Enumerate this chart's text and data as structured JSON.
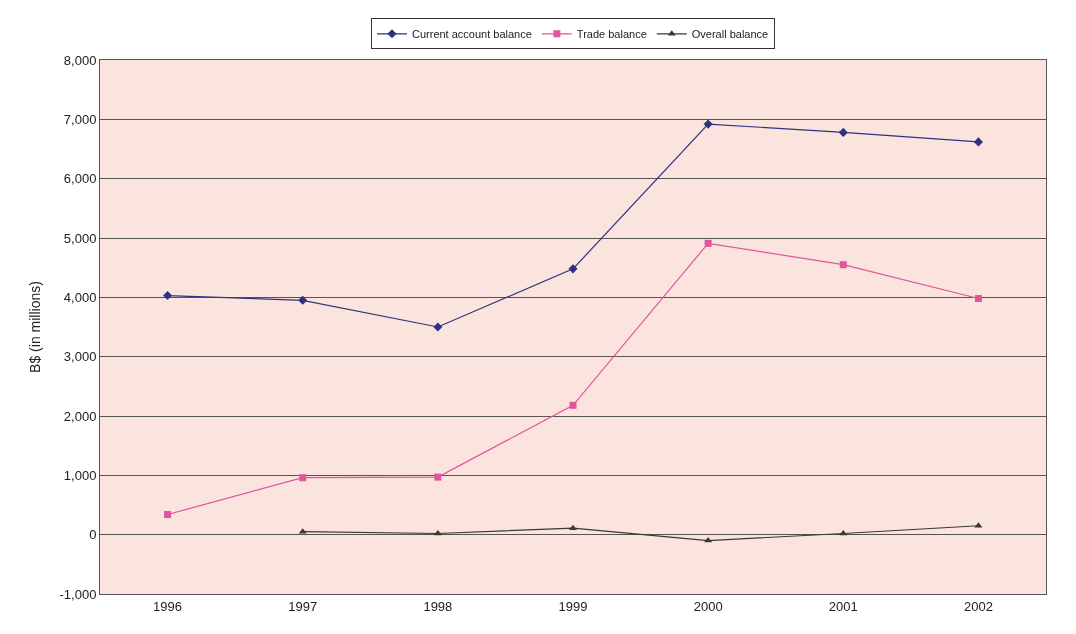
{
  "chart_data": {
    "type": "line",
    "ylabel": "B$ (in millions)",
    "categories": [
      "1996",
      "1997",
      "1998",
      "1999",
      "2000",
      "2001",
      "2002"
    ],
    "series": [
      {
        "name": "Current account balance",
        "color": "#2e3280",
        "marker": "diamond",
        "values": [
          4030,
          3950,
          3500,
          4480,
          6920,
          6780,
          6620
        ]
      },
      {
        "name": "Trade balance",
        "color": "#e0559c",
        "marker": "square",
        "values": [
          340,
          960,
          970,
          2180,
          4910,
          4550,
          3980
        ]
      },
      {
        "name": "Overall balance",
        "color": "#3a3a30",
        "marker": "triangle",
        "values": [
          null,
          50,
          20,
          110,
          -100,
          20,
          150
        ]
      }
    ],
    "ylim": [
      -1000,
      8000
    ],
    "yticks": [
      {
        "value": -1000,
        "label": "-1,000"
      },
      0,
      {
        "value": 1000,
        "label": "1,000"
      },
      {
        "value": 2000,
        "label": "2,000"
      },
      {
        "value": 3000,
        "label": "3,000"
      },
      {
        "value": 4000,
        "label": "4,000"
      },
      {
        "value": 5000,
        "label": "5,000"
      },
      {
        "value": 6000,
        "label": "6,000"
      },
      {
        "value": 7000,
        "label": "7,000"
      },
      {
        "value": 8000,
        "label": "8,000"
      }
    ],
    "grid": "y",
    "legend": "top",
    "line_style": "solid"
  }
}
